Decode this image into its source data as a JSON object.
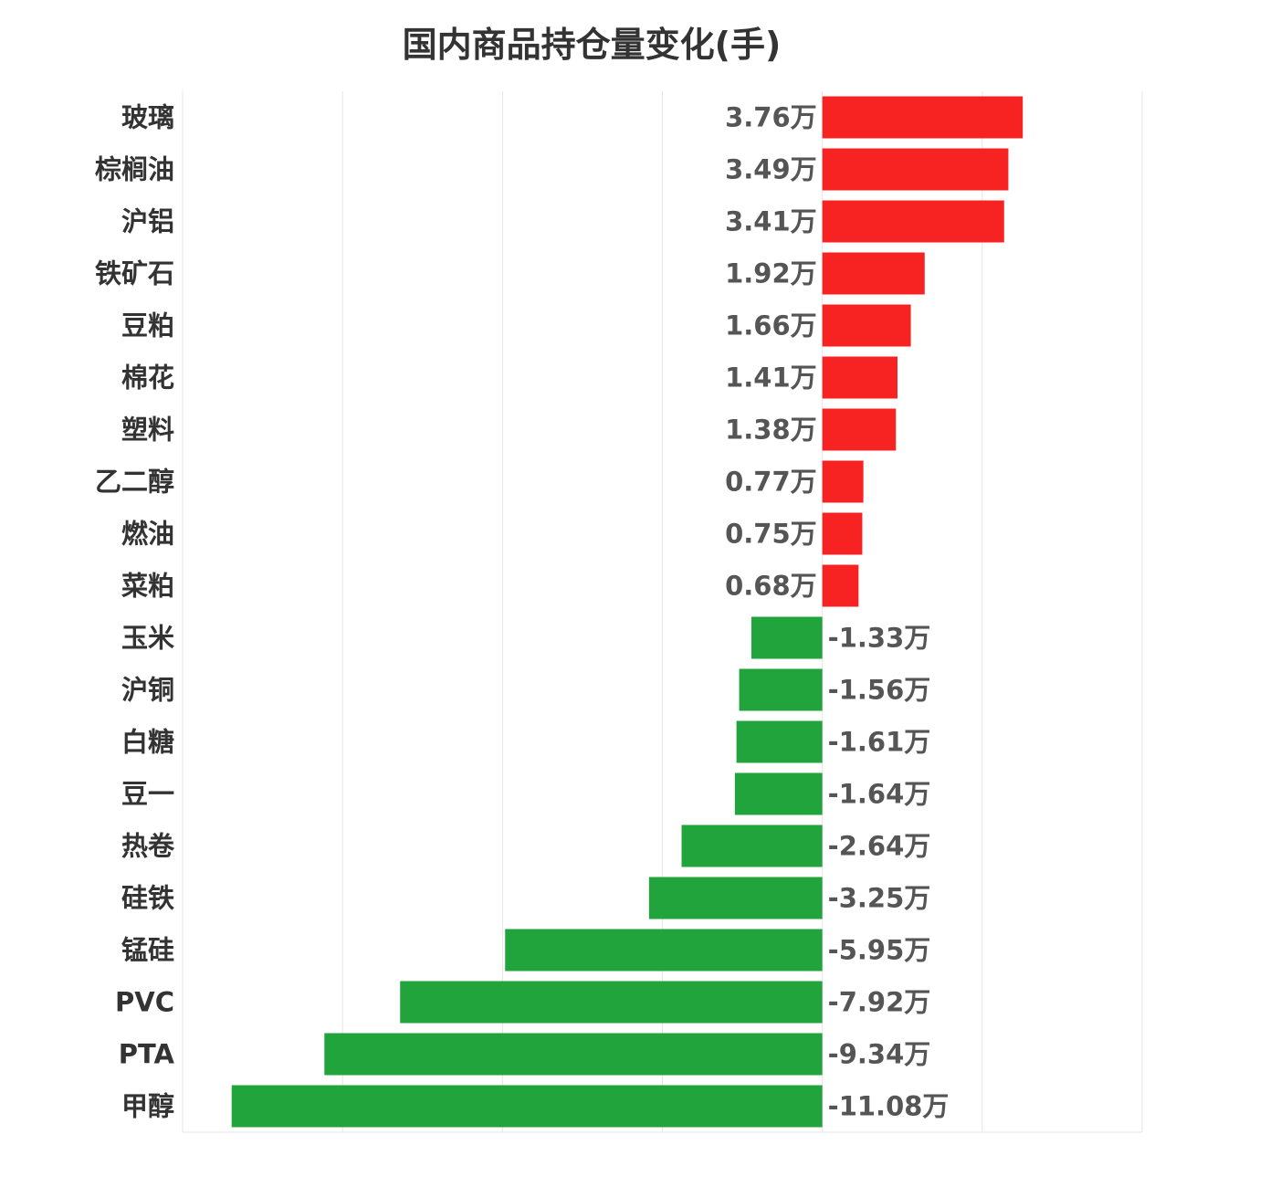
{
  "chart_data": {
    "type": "bar",
    "orientation": "horizontal",
    "title": "国内商品持仓量变化(手)",
    "unit_suffix": "万",
    "xlim": [
      -12,
      6
    ],
    "grid": true,
    "categories": [
      "玻璃",
      "棕榈油",
      "沪铝",
      "铁矿石",
      "豆粕",
      "棉花",
      "塑料",
      "乙二醇",
      "燃油",
      "菜粕",
      "玉米",
      "沪铜",
      "白糖",
      "豆一",
      "热卷",
      "硅铁",
      "锰硅",
      "PVC",
      "PTA",
      "甲醇"
    ],
    "values": [
      3.76,
      3.49,
      3.41,
      1.92,
      1.66,
      1.41,
      1.38,
      0.77,
      0.75,
      0.68,
      -1.33,
      -1.56,
      -1.61,
      -1.64,
      -2.64,
      -3.25,
      -5.95,
      -7.92,
      -9.34,
      -11.08
    ],
    "value_labels": [
      "3.76万",
      "3.49万",
      "3.41万",
      "1.92万",
      "1.66万",
      "1.41万",
      "1.38万",
      "0.77万",
      "0.75万",
      "0.68万",
      "-1.33万",
      "-1.56万",
      "-1.61万",
      "-1.64万",
      "-2.64万",
      "-3.25万",
      "-5.95万",
      "-7.92万",
      "-9.34万",
      "-11.08万"
    ],
    "colors": {
      "positive": "#f72323",
      "negative": "#21a43b"
    }
  }
}
